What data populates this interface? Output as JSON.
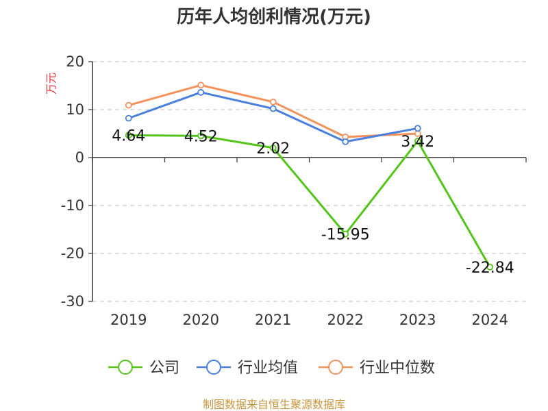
{
  "chart_data": {
    "type": "line",
    "title": "历年人均创利情况(万元)",
    "ylabel": "万元",
    "categories": [
      "2019",
      "2020",
      "2021",
      "2022",
      "2023",
      "2024"
    ],
    "ylim": [
      -30,
      20
    ],
    "yticks": [
      "20",
      "10",
      "0",
      "-10",
      "-20",
      "-30"
    ],
    "grid": true,
    "legend_position": "bottom",
    "series": [
      {
        "name": "公司",
        "color": "#52c41a",
        "values": [
          4.64,
          4.52,
          2.02,
          -15.95,
          3.42,
          -22.84
        ],
        "labels": [
          "4.64",
          "4.52",
          "2.02",
          "-15.95",
          "3.42",
          "-22.84"
        ]
      },
      {
        "name": "行业均值",
        "color": "#4a7fdc",
        "values": [
          8.2,
          13.6,
          10.2,
          3.3,
          6.1,
          null
        ]
      },
      {
        "name": "行业中位数",
        "color": "#f5915a",
        "values": [
          10.9,
          15.1,
          11.6,
          4.3,
          5.0,
          null
        ]
      }
    ]
  },
  "source": "制图数据来自恒生聚源数据库"
}
